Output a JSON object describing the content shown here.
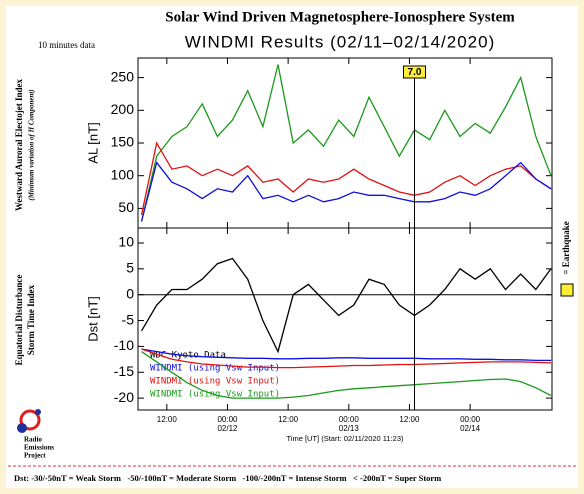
{
  "title": "Solar Wind Driven Magnetosphere-Ionosphere System",
  "subtitle": "WINDMI Results (02/11–02/14/2020)",
  "note": "10 minutes data",
  "logo": [
    "Radio",
    "Emissions",
    "Project"
  ],
  "footer": "Dst: -30/-50nT = Weak Storm   -50/-100nT = Moderate Storm   -100/-200nT = Intense Storm   < -200nT = Super Storm",
  "earthquake": {
    "x": 61,
    "label": "7.0",
    "legend": "= Earthquake"
  },
  "chart_data": [
    {
      "type": "line",
      "ylabel": "AL [nT]",
      "side_label": [
        "Westward Auroral Electojet Index",
        "(Minimum variation of H Component)"
      ],
      "xlim": [
        6.3,
        88.2
      ],
      "ylim": [
        20,
        280
      ],
      "yticks": [
        50,
        100,
        150,
        200,
        250
      ],
      "x": [
        7,
        10,
        13,
        16,
        19,
        22,
        25,
        28,
        31,
        34,
        37,
        40,
        43,
        46,
        49,
        52,
        55,
        58,
        61,
        64,
        67,
        70,
        73,
        76,
        79,
        82,
        85,
        88
      ],
      "series": [
        {
          "color": "#1a9a1a",
          "values": [
            30,
            130,
            160,
            175,
            210,
            160,
            185,
            230,
            175,
            270,
            150,
            170,
            145,
            185,
            160,
            220,
            175,
            130,
            170,
            155,
            200,
            160,
            180,
            165,
            205,
            250,
            160,
            100
          ]
        },
        {
          "color": "#e01010",
          "values": [
            40,
            150,
            110,
            115,
            100,
            110,
            100,
            115,
            90,
            95,
            75,
            95,
            90,
            95,
            110,
            95,
            85,
            75,
            70,
            75,
            90,
            100,
            85,
            100,
            110,
            115,
            95,
            80
          ]
        },
        {
          "color": "#1010e0",
          "values": [
            30,
            120,
            90,
            80,
            65,
            80,
            75,
            100,
            65,
            70,
            60,
            70,
            60,
            65,
            75,
            70,
            70,
            65,
            60,
            60,
            65,
            75,
            70,
            80,
            100,
            120,
            95,
            80
          ]
        }
      ]
    },
    {
      "type": "line",
      "ylabel": "Dst [nT]",
      "side_label": [
        "Equatorial Disturbance",
        "Storm Time Index"
      ],
      "xlabel": "Time [UT] (Start: 02/11/2020 11:23)",
      "hline": 0,
      "xlim": [
        6.3,
        88.2
      ],
      "ylim": [
        -22.3,
        12.9
      ],
      "yticks": [
        -20,
        -15,
        -10,
        -5,
        0,
        5,
        10
      ],
      "xticks": [
        {
          "value": 12,
          "label": "12:00"
        },
        {
          "value": 24,
          "label": "00:00 02/12"
        },
        {
          "value": 36,
          "label": "12:00"
        },
        {
          "value": 48,
          "label": "00:00 02/13"
        },
        {
          "value": 60,
          "label": "12:00"
        },
        {
          "value": 72,
          "label": "00:00 02/14"
        }
      ],
      "x": [
        7,
        10,
        13,
        16,
        19,
        22,
        25,
        28,
        31,
        34,
        37,
        40,
        43,
        46,
        49,
        52,
        55,
        58,
        61,
        64,
        67,
        70,
        73,
        76,
        79,
        82,
        85,
        88
      ],
      "series": [
        {
          "name": "WDC Kyoto Data",
          "color": "#000000",
          "values": [
            -7,
            -2,
            1,
            1,
            3,
            6,
            7,
            3,
            -5,
            -11,
            0,
            2,
            -1,
            -4,
            -2,
            3,
            2,
            -2,
            -4,
            -2,
            1,
            5,
            3,
            5,
            1,
            4,
            1,
            5
          ]
        },
        {
          "name": "WINDMI (using Vsw Input)",
          "color": "#1010e0",
          "values": [
            -10.5,
            -11,
            -11.5,
            -11.8,
            -12,
            -12.1,
            -12.2,
            -12.3,
            -12.3,
            -12.4,
            -12.4,
            -12.3,
            -12.3,
            -12.2,
            -12.2,
            -12.3,
            -12.3,
            -12.3,
            -12.3,
            -12.4,
            -12.4,
            -12.4,
            -12.5,
            -12.5,
            -12.6,
            -12.6,
            -12.7,
            -12.7
          ]
        },
        {
          "name": "WINDMI (using Vsw Input)",
          "color": "#e01010",
          "values": [
            -10.5,
            -11.5,
            -12.5,
            -13,
            -13.4,
            -13.6,
            -13.8,
            -14,
            -14,
            -14.1,
            -14.1,
            -14,
            -13.9,
            -13.8,
            -13.7,
            -13.7,
            -13.6,
            -13.5,
            -13.5,
            -13.4,
            -13.3,
            -13.2,
            -13.1,
            -13,
            -13,
            -13,
            -13.1,
            -13.2
          ]
        },
        {
          "name": "WINDMI (using Vsw Input)",
          "color": "#1a9a1a",
          "values": [
            -11,
            -13,
            -15,
            -17,
            -18.5,
            -19.5,
            -20,
            -20,
            -20,
            -20,
            -19.8,
            -19.5,
            -19,
            -18.5,
            -18.2,
            -18,
            -17.8,
            -17.6,
            -17.4,
            -17.2,
            -17,
            -16.8,
            -16.6,
            -16.4,
            -16.3,
            -16.8,
            -18,
            -19.5
          ]
        }
      ]
    }
  ]
}
